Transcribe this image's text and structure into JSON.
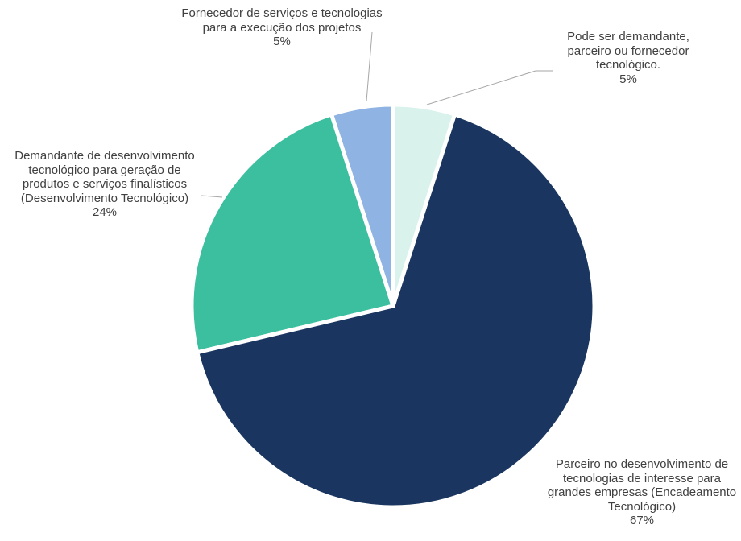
{
  "chart_data": {
    "type": "pie",
    "categories": [
      "Pode ser demandante, parceiro ou fornecedor tecnológico.",
      "Parceiro no desenvolvimento de tecnologias de interesse para grandes empresas (Encadeamento Tecnológico)",
      "Demandante de desenvolvimento tecnológico para geração de produtos e serviços finalísticos (Desenvolvimento Tecnológico)",
      "Fornecedor de serviços e tecnologias para a execução dos projetos"
    ],
    "values": [
      5,
      67,
      24,
      5
    ],
    "value_labels": [
      "5%",
      "67%",
      "24%",
      "5%"
    ],
    "colors": [
      "#d9f2ec",
      "#1a3660",
      "#3bbf9f",
      "#8fb4e3"
    ]
  }
}
